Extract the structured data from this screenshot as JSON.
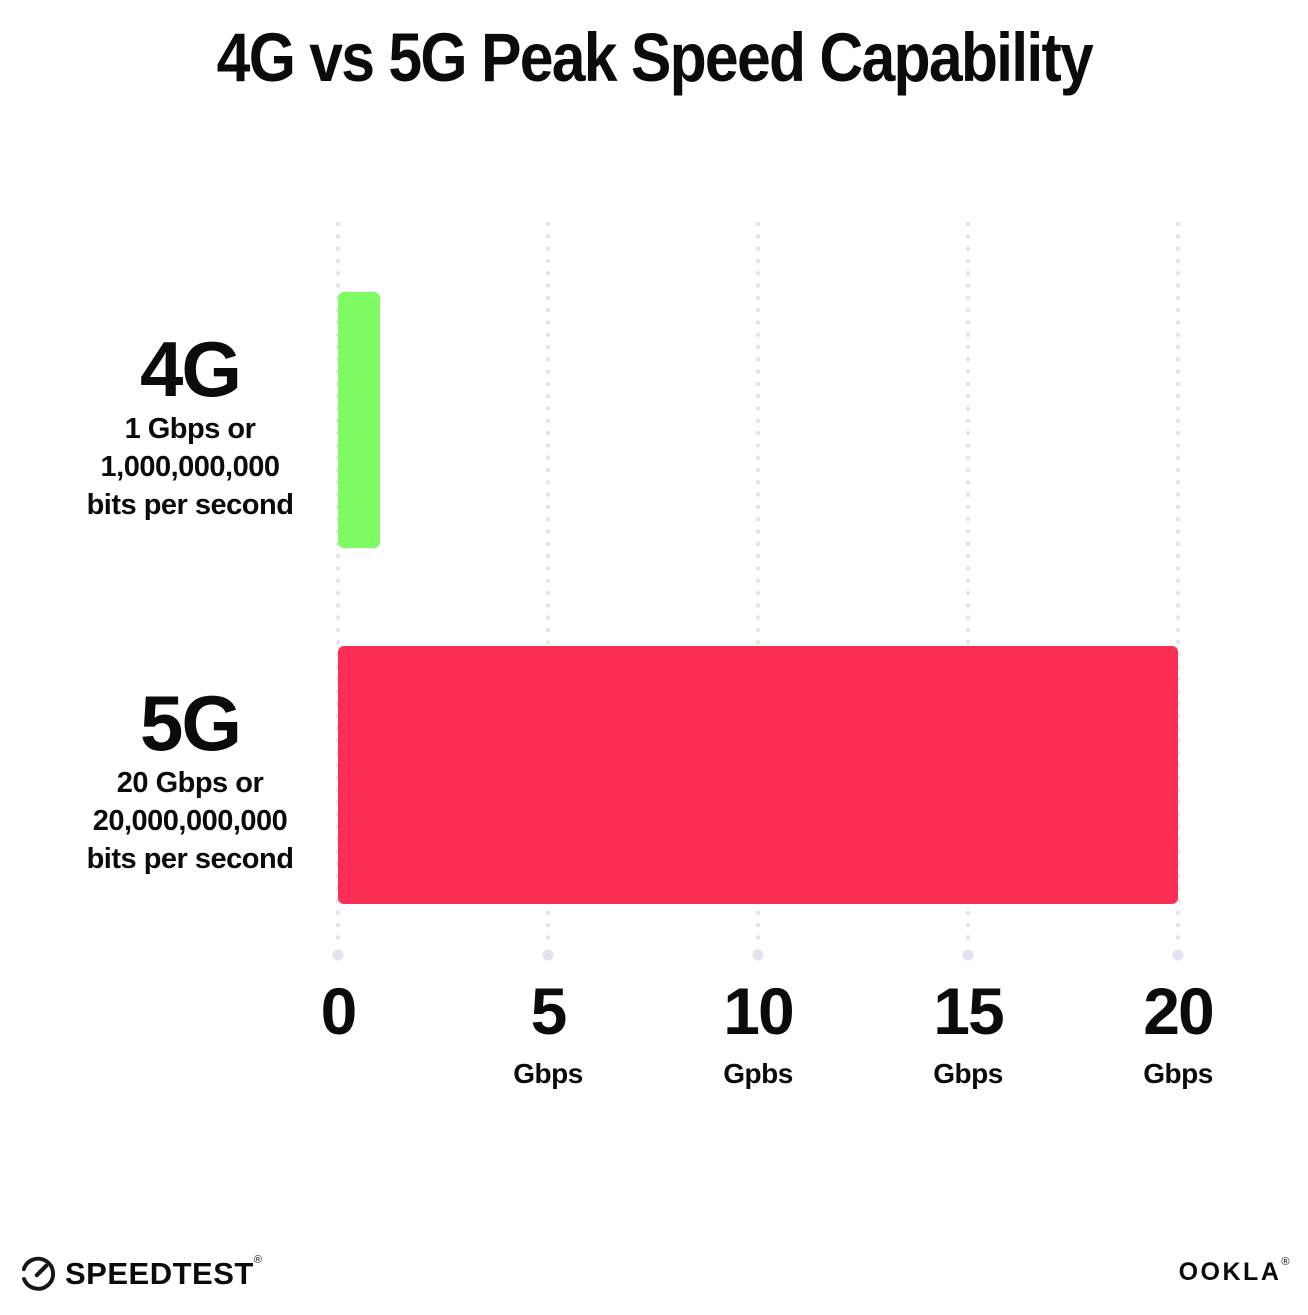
{
  "title": "4G vs 5G Peak Speed Capability",
  "colors": {
    "bar_4g": "#7FFB63",
    "bar_5g": "#FD2E56",
    "grid_dot": "#E2E3EE",
    "text": "#0B0B0B"
  },
  "chart_data": {
    "type": "bar",
    "orientation": "horizontal",
    "title": "4G vs 5G Peak Speed Capability",
    "categories": [
      "4G",
      "5G"
    ],
    "values": [
      1,
      20
    ],
    "unit": "Gbps",
    "xlim": [
      0,
      20
    ],
    "xticks": [
      {
        "label": "0",
        "unit": ""
      },
      {
        "label": "5",
        "unit": "Gbps"
      },
      {
        "label": "10",
        "unit": "Gpbs"
      },
      {
        "label": "15",
        "unit": "Gbps"
      },
      {
        "label": "20",
        "unit": "Gbps"
      }
    ],
    "grid": "vertical-dotted",
    "legend": "none",
    "bar_colors": [
      "#7FFB63",
      "#FD2E56"
    ],
    "annotations": [
      "4G: 1 Gbps or 1,000,000,000 bits per second",
      "5G: 20 Gbps or 20,000,000,000 bits per second"
    ]
  },
  "rows": [
    {
      "label": "4G",
      "sub_lines": [
        "1 Gbps or",
        "1,000,000,000",
        "bits per second"
      ],
      "value": 1
    },
    {
      "label": "5G",
      "sub_lines": [
        "20 Gbps or",
        "20,000,000,000",
        "bits per second"
      ],
      "value": 20
    }
  ],
  "footer": {
    "speedtest": {
      "label": "SPEEDTEST",
      "mark": "®"
    },
    "ookla": {
      "label": "OOKLA",
      "mark": "®"
    }
  }
}
